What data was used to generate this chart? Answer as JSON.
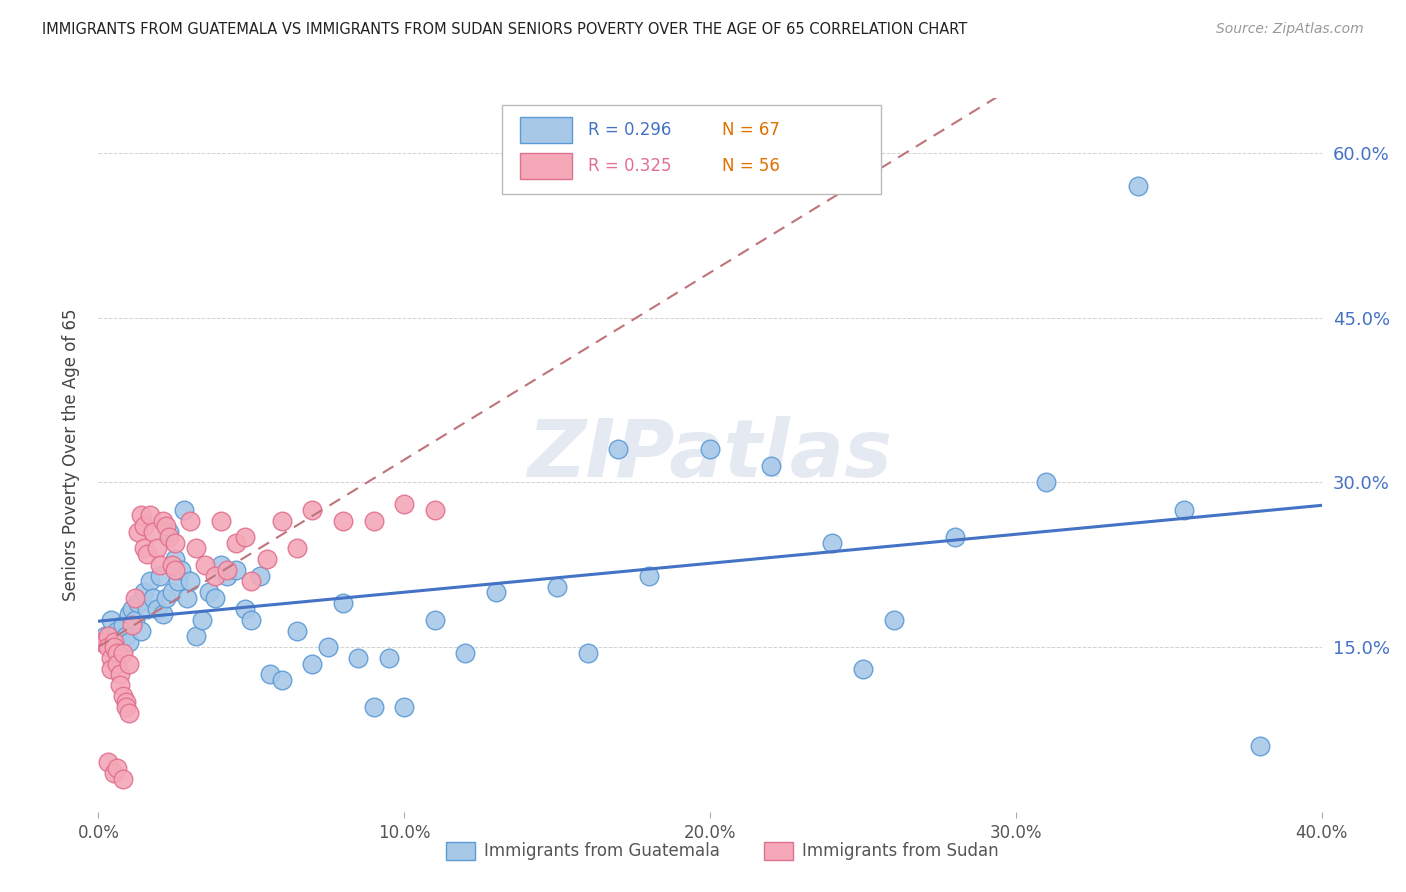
{
  "title": "IMMIGRANTS FROM GUATEMALA VS IMMIGRANTS FROM SUDAN SENIORS POVERTY OVER THE AGE OF 65 CORRELATION CHART",
  "source": "Source: ZipAtlas.com",
  "ylabel": "Seniors Poverty Over the Age of 65",
  "legend_label1": "Immigrants from Guatemala",
  "legend_label2": "Immigrants from Sudan",
  "R1": "0.296",
  "N1": "67",
  "R2": "0.325",
  "N2": "56",
  "color1": "#a8c8e8",
  "color2": "#f4a8b8",
  "color1_edge": "#5b9bd5",
  "color2_edge": "#e07090",
  "trendline1_color": "#4472c4",
  "trendline2_color": "#c0737a",
  "xlim": [
    0.0,
    0.4
  ],
  "ylim": [
    0.0,
    0.65
  ],
  "xticks": [
    0.0,
    0.1,
    0.2,
    0.3,
    0.4
  ],
  "yticks": [
    0.15,
    0.3,
    0.45,
    0.6
  ],
  "xtick_labels": [
    "0.0%",
    "10.0%",
    "20.0%",
    "30.0%",
    "40.0%"
  ],
  "ytick_labels_right": [
    "15.0%",
    "30.0%",
    "45.0%",
    "60.0%"
  ],
  "watermark": "ZIPatlas",
  "guatemala_x": [
    0.002,
    0.003,
    0.004,
    0.005,
    0.006,
    0.007,
    0.008,
    0.009,
    0.01,
    0.01,
    0.011,
    0.012,
    0.013,
    0.014,
    0.015,
    0.016,
    0.017,
    0.018,
    0.019,
    0.02,
    0.021,
    0.022,
    0.023,
    0.024,
    0.025,
    0.026,
    0.027,
    0.028,
    0.029,
    0.03,
    0.032,
    0.034,
    0.036,
    0.038,
    0.04,
    0.042,
    0.045,
    0.048,
    0.05,
    0.053,
    0.056,
    0.06,
    0.065,
    0.07,
    0.075,
    0.08,
    0.085,
    0.09,
    0.095,
    0.1,
    0.11,
    0.12,
    0.13,
    0.15,
    0.16,
    0.18,
    0.2,
    0.22,
    0.25,
    0.26,
    0.28,
    0.31,
    0.34,
    0.355,
    0.17,
    0.24,
    0.38
  ],
  "guatemala_y": [
    0.16,
    0.155,
    0.175,
    0.15,
    0.165,
    0.155,
    0.17,
    0.16,
    0.155,
    0.18,
    0.185,
    0.175,
    0.19,
    0.165,
    0.2,
    0.185,
    0.21,
    0.195,
    0.185,
    0.215,
    0.18,
    0.195,
    0.255,
    0.2,
    0.23,
    0.21,
    0.22,
    0.275,
    0.195,
    0.21,
    0.16,
    0.175,
    0.2,
    0.195,
    0.225,
    0.215,
    0.22,
    0.185,
    0.175,
    0.215,
    0.125,
    0.12,
    0.165,
    0.135,
    0.15,
    0.19,
    0.14,
    0.095,
    0.14,
    0.095,
    0.175,
    0.145,
    0.2,
    0.205,
    0.145,
    0.215,
    0.33,
    0.315,
    0.13,
    0.175,
    0.25,
    0.3,
    0.57,
    0.275,
    0.33,
    0.245,
    0.06
  ],
  "sudan_x": [
    0.001,
    0.002,
    0.003,
    0.003,
    0.004,
    0.004,
    0.005,
    0.005,
    0.006,
    0.006,
    0.007,
    0.007,
    0.008,
    0.008,
    0.009,
    0.009,
    0.01,
    0.01,
    0.011,
    0.012,
    0.013,
    0.014,
    0.015,
    0.015,
    0.016,
    0.017,
    0.018,
    0.019,
    0.02,
    0.021,
    0.022,
    0.023,
    0.024,
    0.025,
    0.025,
    0.03,
    0.032,
    0.035,
    0.038,
    0.04,
    0.042,
    0.045,
    0.048,
    0.05,
    0.055,
    0.06,
    0.065,
    0.07,
    0.08,
    0.09,
    0.1,
    0.11,
    0.003,
    0.005,
    0.006,
    0.008
  ],
  "sudan_y": [
    0.155,
    0.155,
    0.16,
    0.15,
    0.14,
    0.13,
    0.155,
    0.15,
    0.145,
    0.135,
    0.125,
    0.115,
    0.145,
    0.105,
    0.1,
    0.095,
    0.09,
    0.135,
    0.17,
    0.195,
    0.255,
    0.27,
    0.26,
    0.24,
    0.235,
    0.27,
    0.255,
    0.24,
    0.225,
    0.265,
    0.26,
    0.25,
    0.225,
    0.22,
    0.245,
    0.265,
    0.24,
    0.225,
    0.215,
    0.265,
    0.22,
    0.245,
    0.25,
    0.21,
    0.23,
    0.265,
    0.24,
    0.275,
    0.265,
    0.265,
    0.28,
    0.275,
    0.045,
    0.035,
    0.04,
    0.03
  ]
}
